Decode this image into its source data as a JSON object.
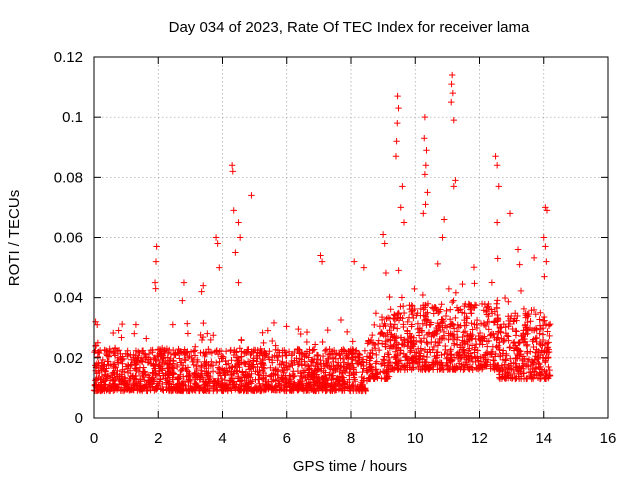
{
  "chart_data": {
    "type": "scatter",
    "title": "Day 034 of 2023, Rate Of TEC Index for receiver lama",
    "xlabel": "GPS time / hours",
    "ylabel": "ROTI / TECUs",
    "xlim": [
      0,
      16
    ],
    "ylim": [
      0,
      0.12
    ],
    "xticks": [
      0,
      2,
      4,
      6,
      8,
      10,
      12,
      14,
      16
    ],
    "xtick_labels": [
      "0",
      "2",
      "4",
      "6",
      "8",
      "10",
      "12",
      "14",
      "16"
    ],
    "yticks": [
      0,
      0.02,
      0.04,
      0.06,
      0.08,
      0.1,
      0.12
    ],
    "ytick_labels": [
      "0",
      "0.02",
      "0.04",
      "0.06",
      "0.08",
      "0.1",
      "0.12"
    ],
    "grid": true,
    "marker": "+",
    "series": [
      {
        "name": "ROTI",
        "color": "#ff0000",
        "time_range_hours": [
          0,
          14.2
        ],
        "typical_range": [
          0.003,
          0.03
        ],
        "points": [
          {
            "x": 0.05,
            "y": 0.032
          },
          {
            "x": 0.1,
            "y": 0.031
          },
          {
            "x": 0.12,
            "y": 0.025
          },
          {
            "x": 0.15,
            "y": 0.022
          },
          {
            "x": 1.95,
            "y": 0.057
          },
          {
            "x": 1.93,
            "y": 0.052
          },
          {
            "x": 1.9,
            "y": 0.045
          },
          {
            "x": 1.92,
            "y": 0.043
          },
          {
            "x": 2.8,
            "y": 0.045
          },
          {
            "x": 2.75,
            "y": 0.039
          },
          {
            "x": 3.4,
            "y": 0.044
          },
          {
            "x": 3.35,
            "y": 0.042
          },
          {
            "x": 3.8,
            "y": 0.06
          },
          {
            "x": 3.85,
            "y": 0.058
          },
          {
            "x": 3.9,
            "y": 0.05
          },
          {
            "x": 4.3,
            "y": 0.084
          },
          {
            "x": 4.32,
            "y": 0.082
          },
          {
            "x": 4.35,
            "y": 0.069
          },
          {
            "x": 4.5,
            "y": 0.065
          },
          {
            "x": 4.55,
            "y": 0.06
          },
          {
            "x": 4.4,
            "y": 0.055
          },
          {
            "x": 4.5,
            "y": 0.045
          },
          {
            "x": 4.9,
            "y": 0.074
          },
          {
            "x": 7.05,
            "y": 0.054
          },
          {
            "x": 7.1,
            "y": 0.052
          },
          {
            "x": 8.1,
            "y": 0.052
          },
          {
            "x": 8.4,
            "y": 0.05
          },
          {
            "x": 9.0,
            "y": 0.061
          },
          {
            "x": 9.05,
            "y": 0.058
          },
          {
            "x": 9.45,
            "y": 0.107
          },
          {
            "x": 9.48,
            "y": 0.103
          },
          {
            "x": 9.44,
            "y": 0.098
          },
          {
            "x": 9.42,
            "y": 0.092
          },
          {
            "x": 9.4,
            "y": 0.087
          },
          {
            "x": 9.6,
            "y": 0.077
          },
          {
            "x": 9.55,
            "y": 0.07
          },
          {
            "x": 9.65,
            "y": 0.065
          },
          {
            "x": 10.3,
            "y": 0.1
          },
          {
            "x": 10.28,
            "y": 0.093
          },
          {
            "x": 10.35,
            "y": 0.089
          },
          {
            "x": 10.33,
            "y": 0.084
          },
          {
            "x": 10.3,
            "y": 0.081
          },
          {
            "x": 10.38,
            "y": 0.075
          },
          {
            "x": 10.32,
            "y": 0.071
          },
          {
            "x": 10.25,
            "y": 0.068
          },
          {
            "x": 10.9,
            "y": 0.066
          },
          {
            "x": 10.85,
            "y": 0.06
          },
          {
            "x": 11.15,
            "y": 0.114
          },
          {
            "x": 11.13,
            "y": 0.111
          },
          {
            "x": 11.17,
            "y": 0.108
          },
          {
            "x": 11.12,
            "y": 0.105
          },
          {
            "x": 11.2,
            "y": 0.099
          },
          {
            "x": 11.25,
            "y": 0.079
          },
          {
            "x": 11.2,
            "y": 0.077
          },
          {
            "x": 12.5,
            "y": 0.087
          },
          {
            "x": 12.55,
            "y": 0.084
          },
          {
            "x": 12.6,
            "y": 0.077
          },
          {
            "x": 12.55,
            "y": 0.065
          },
          {
            "x": 12.95,
            "y": 0.068
          },
          {
            "x": 13.2,
            "y": 0.056
          },
          {
            "x": 13.25,
            "y": 0.051
          },
          {
            "x": 14.05,
            "y": 0.07
          },
          {
            "x": 14.1,
            "y": 0.069
          },
          {
            "x": 14.0,
            "y": 0.06
          },
          {
            "x": 14.05,
            "y": 0.057
          },
          {
            "x": 14.08,
            "y": 0.052
          },
          {
            "x": 14.02,
            "y": 0.047
          }
        ]
      }
    ]
  }
}
